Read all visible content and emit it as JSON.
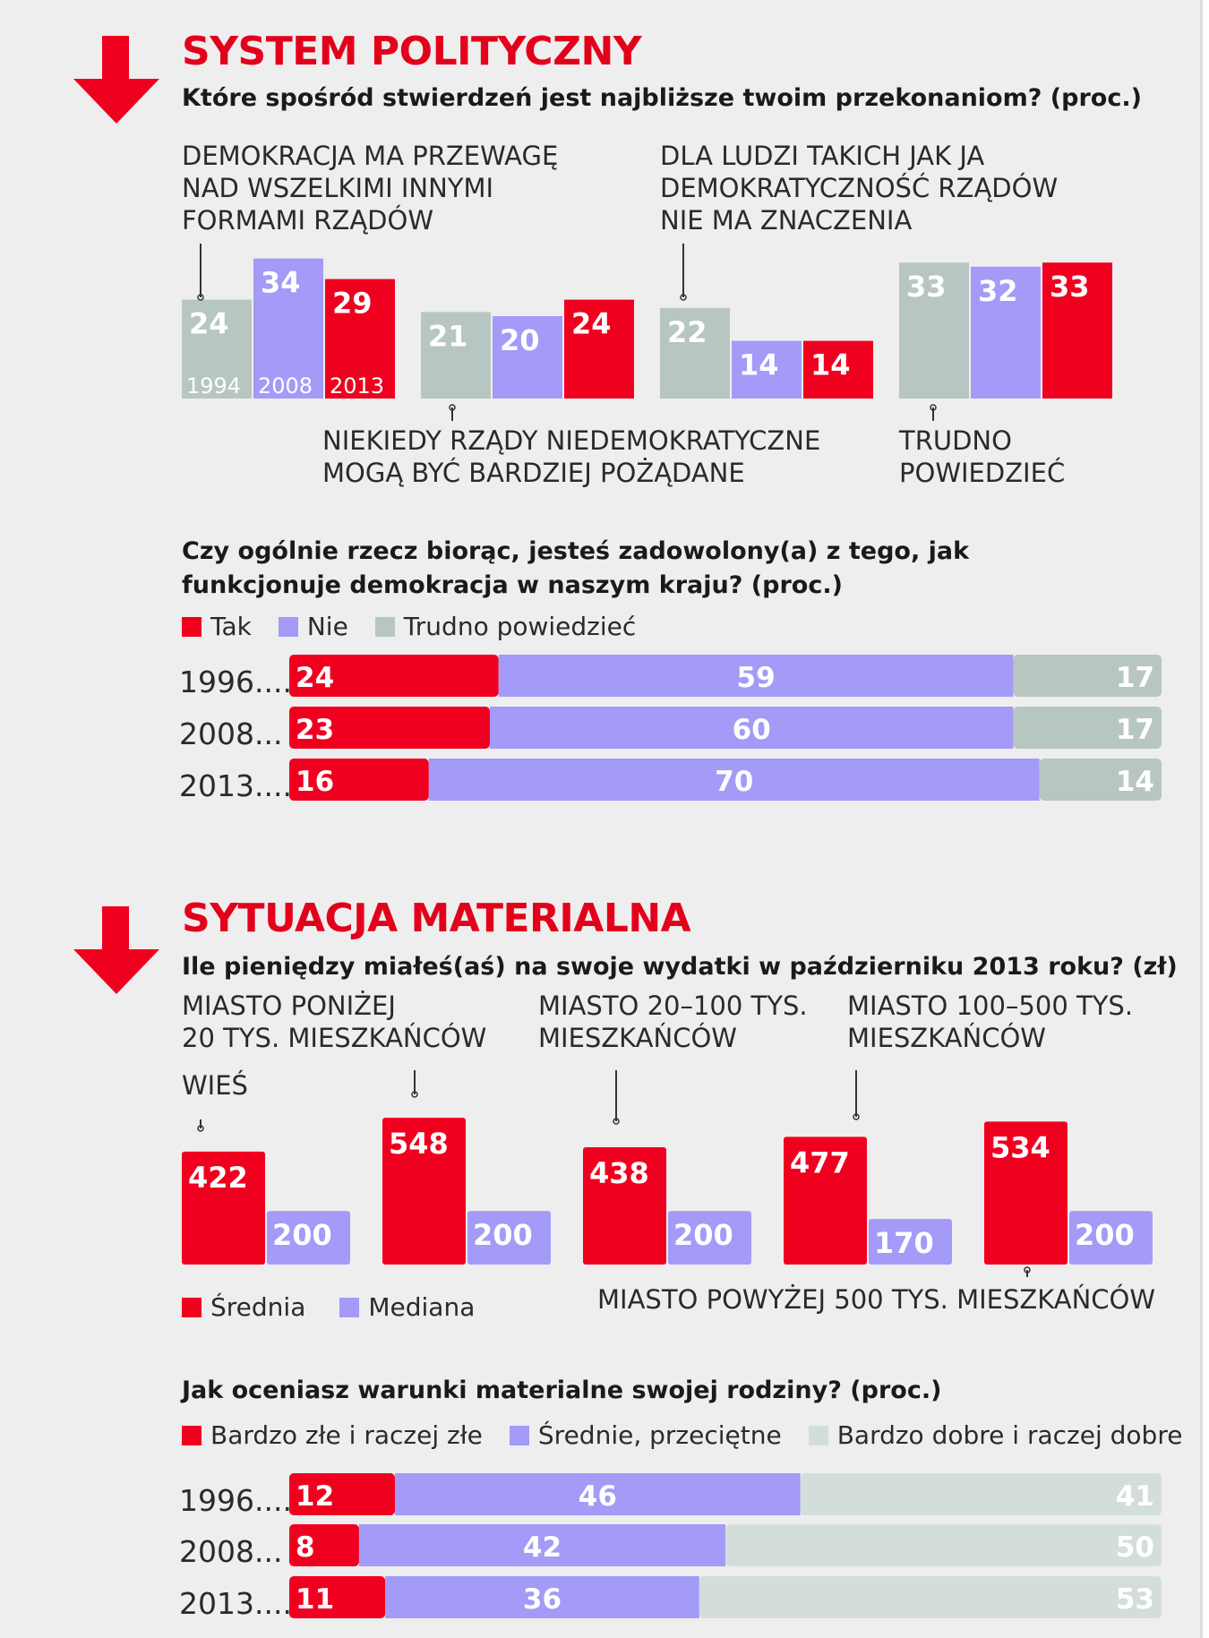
{
  "section1": {
    "title": "SYSTEM POLITYCZNY",
    "question": "Które spośród stwierdzeń jest najbliższe twoim przekonaniom? (proc.)",
    "icon": "down-arrow-icon"
  },
  "section2": {
    "title": "SYTUACJA MATERIALNA",
    "question": "Ile pieniędzy miałeś(aś) na swoje wydatki w październiku 2013 roku? (zł)",
    "icon": "down-arrow-icon"
  },
  "colors": {
    "red": "#f0001f",
    "purple": "#a49af7",
    "grey": "#b7c6c0",
    "lightgrey": "#d3dedb"
  },
  "chart_data": [
    {
      "type": "bar",
      "id": "politics",
      "years": [
        "1994",
        "2008",
        "2013"
      ],
      "groups": [
        {
          "label": "DEMOKRACJA MA PRZEWAGĘ\nNAD WSZELKIMI INNYMI\nFORMAMI RZĄDÓW",
          "values": [
            24,
            34,
            29
          ]
        },
        {
          "label": "NIEKIEDY RZĄDY NIEDEMOKRATYCZNE\nMOGĄ BYĆ BARDZIEJ POŻĄDANE",
          "values": [
            21,
            20,
            24
          ]
        },
        {
          "label": "DLA LUDZI TAKICH JAK JA\nDEMOKRATYCZNOŚĆ RZĄDÓW\nNIE MA ZNACZENIA",
          "values": [
            22,
            14,
            14
          ]
        },
        {
          "label": "TRUDNO\nPOWIEDZIEĆ",
          "values": [
            33,
            32,
            33
          ]
        }
      ]
    },
    {
      "type": "bar",
      "id": "democracy",
      "stacked": true,
      "orientation": "horizontal",
      "title": "Czy ogólnie rzecz biorąc, jesteś zadowolony(a) z tego, jak\nfunkcjonuje demokracja w naszym kraju? (proc.)",
      "legend": [
        "Tak",
        "Nie",
        "Trudno powiedzieć"
      ],
      "rows": [
        {
          "label": "1996.....",
          "values": [
            24,
            59,
            17
          ]
        },
        {
          "label": "2008...",
          "values": [
            23,
            60,
            17
          ]
        },
        {
          "label": "2013.....",
          "values": [
            16,
            70,
            14
          ]
        }
      ]
    },
    {
      "type": "bar",
      "id": "money",
      "legend": [
        "Średnia",
        "Mediana"
      ],
      "groups": [
        {
          "label": "WIEŚ",
          "values": [
            422,
            200
          ]
        },
        {
          "label": "MIASTO PONIŻEJ\n20 TYS. MIESZKAŃCÓW",
          "values": [
            548,
            200
          ]
        },
        {
          "label": "MIASTO 20–100 TYS.\nMIESZKAŃCÓW",
          "values": [
            438,
            200
          ]
        },
        {
          "label": "MIASTO 100–500 TYS.\nMIESZKAŃCÓW",
          "values": [
            477,
            170
          ]
        },
        {
          "label": "MIASTO POWYŻEJ 500 TYS. MIESZKAŃCÓW",
          "values": [
            534,
            200
          ]
        }
      ]
    },
    {
      "type": "bar",
      "id": "conditions",
      "stacked": true,
      "orientation": "horizontal",
      "title": "Jak oceniasz warunki materialne swojej rodziny? (proc.)",
      "legend": [
        "Bardzo złe i raczej złe",
        "Średnie, przeciętne",
        "Bardzo dobre i raczej dobre"
      ],
      "rows": [
        {
          "label": "1996.....",
          "values": [
            12,
            46,
            41
          ]
        },
        {
          "label": "2008...",
          "values": [
            8,
            42,
            50
          ]
        },
        {
          "label": "2013.....",
          "values": [
            11,
            36,
            53
          ]
        }
      ]
    }
  ]
}
